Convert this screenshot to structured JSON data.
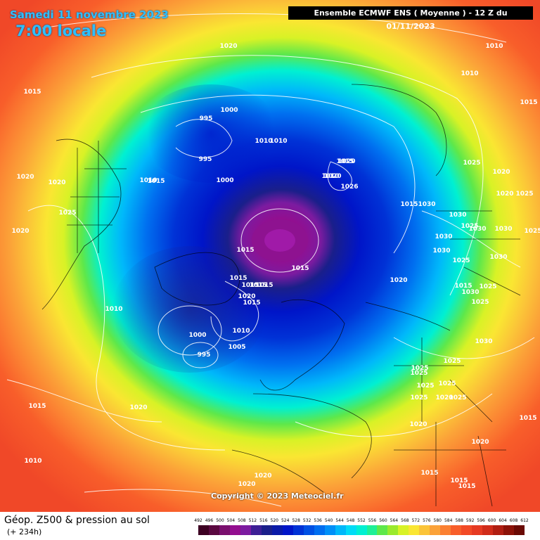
{
  "header": {
    "date": "Samedi 11 novembre 2023",
    "time": "7:00 locale",
    "model": "Ensemble ECMWF ENS  ( Moyenne )  -  12 Z du 01/11/2023"
  },
  "copyright": "Copyright © 2023 Meteociel.fr",
  "footer": {
    "title": "Géop. Z500 & pression au sol",
    "subtitle": "(+ 234h)"
  },
  "colors": {
    "z500_492_556": [
      "#3c0022",
      "#5a0840",
      "#7a0f6e",
      "#930e8f",
      "#7c1ba0",
      "#3d1f95",
      "#1a1f8a",
      "#0a1aa8",
      "#0015c8",
      "#0032d6",
      "#0050e4",
      "#006ef0",
      "#0090f8",
      "#00b8fa",
      "#00dcf6",
      "#00f0d2",
      "#1ef096"
    ],
    "z500_560_612": [
      "#5ee84a",
      "#9aea2c",
      "#d8f226",
      "#fae632",
      "#fbc438",
      "#fba238",
      "#fb8032",
      "#f85e2a",
      "#f24a26",
      "#e63a22",
      "#d02c1a",
      "#b01e12",
      "#8c1208",
      "#6a0a04"
    ]
  },
  "scale": {
    "unit": "dam",
    "labels": [
      "492",
      "496",
      "500",
      "504",
      "508",
      "512",
      "516",
      "520",
      "524",
      "528",
      "532",
      "536",
      "540",
      "544",
      "548",
      "552",
      "556",
      "560",
      "564",
      "568",
      "572",
      "576",
      "580",
      "584",
      "588",
      "592",
      "596",
      "600",
      "604",
      "608",
      "612"
    ]
  },
  "isobar_labels": [
    "1020",
    "1010",
    "1015",
    "1010",
    "1015",
    "995",
    "1000",
    "1010",
    "1010",
    "995",
    "1000",
    "1020",
    "1015",
    "1020",
    "1020",
    "1025",
    "1020",
    "1010",
    "1010",
    "1025",
    "1020",
    "1015",
    "1020",
    "1026",
    "1015",
    "1030",
    "1030",
    "1030",
    "1025",
    "1030",
    "1025",
    "1030",
    "1015",
    "1015",
    "1030",
    "1015",
    "1015",
    "1025",
    "1030",
    "1020",
    "1015",
    "1015",
    "1020",
    "1015",
    "1015",
    "1025",
    "1030",
    "1025",
    "1030",
    "1025",
    "1010",
    "1000",
    "1010",
    "1005",
    "995",
    "1025",
    "1025",
    "1025",
    "1025",
    "1025",
    "1020",
    "1020",
    "1025",
    "1025",
    "1020",
    "1015",
    "1020",
    "1015",
    "1010",
    "1015",
    "1020",
    "1015",
    "1015",
    "1020",
    "1020"
  ]
}
